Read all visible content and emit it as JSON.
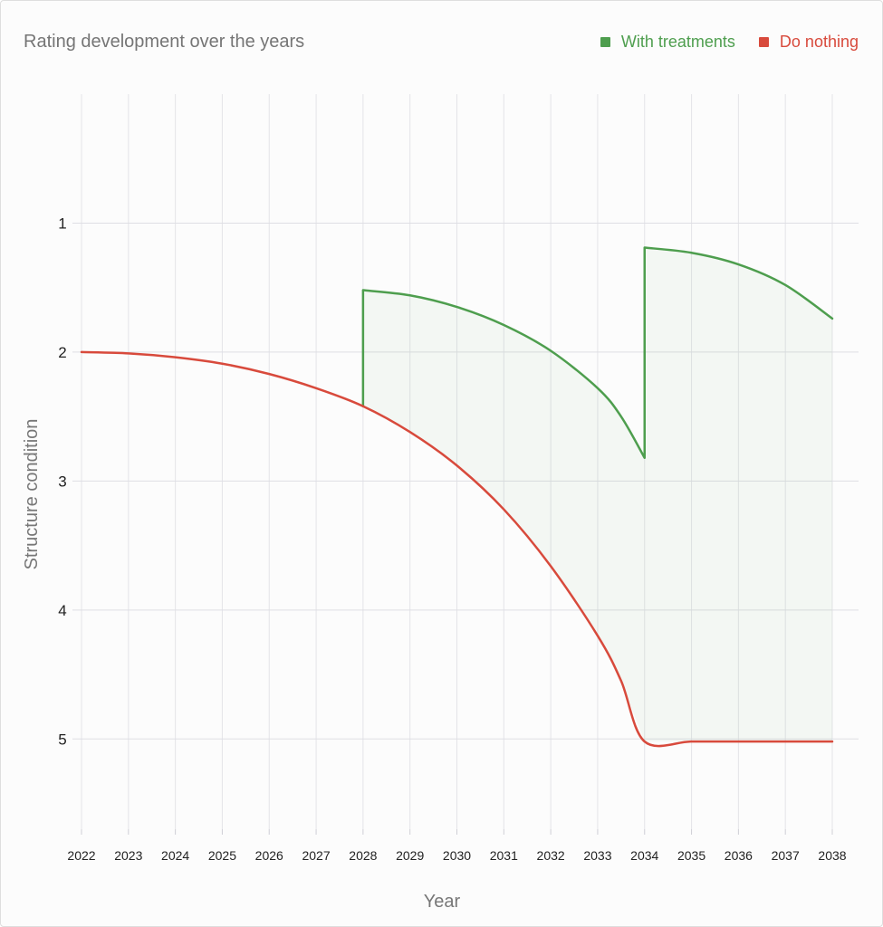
{
  "chart_data": {
    "type": "line",
    "title": "Rating development over the years",
    "xlabel": "Year",
    "ylabel": "Structure condition",
    "xlim": [
      2022,
      2038
    ],
    "ylim": [
      0,
      5.7
    ],
    "y_inverted": true,
    "x_ticks": [
      "2022",
      "2023",
      "2024",
      "2025",
      "2026",
      "2027",
      "2028",
      "2029",
      "2030",
      "2031",
      "2032",
      "2033",
      "2034",
      "2035",
      "2036",
      "2037",
      "2038"
    ],
    "y_ticks": [
      "1",
      "2",
      "3",
      "4",
      "5"
    ],
    "grid": true,
    "legend_position": "top-right",
    "series": [
      {
        "name": "With treatments",
        "color": "#4e9e4e",
        "x": [
          2028,
          2028,
          2029,
          2030,
          2031,
          2032,
          2033,
          2033.5,
          2034,
          2034,
          2035,
          2036,
          2037,
          2038
        ],
        "y": [
          2.42,
          1.52,
          1.56,
          1.65,
          1.79,
          1.99,
          2.28,
          2.5,
          2.82,
          1.19,
          1.23,
          1.32,
          1.48,
          1.74
        ]
      },
      {
        "name": "Do nothing",
        "color": "#d84a3c",
        "x": [
          2022,
          2023,
          2024,
          2025,
          2026,
          2027,
          2028,
          2029,
          2030,
          2031,
          2032,
          2033,
          2033.5,
          2034,
          2035,
          2036,
          2037,
          2038
        ],
        "y": [
          2.0,
          2.01,
          2.04,
          2.09,
          2.17,
          2.28,
          2.42,
          2.62,
          2.88,
          3.22,
          3.66,
          4.2,
          4.55,
          5.02,
          5.02,
          5.02,
          5.02,
          5.02
        ]
      }
    ]
  }
}
